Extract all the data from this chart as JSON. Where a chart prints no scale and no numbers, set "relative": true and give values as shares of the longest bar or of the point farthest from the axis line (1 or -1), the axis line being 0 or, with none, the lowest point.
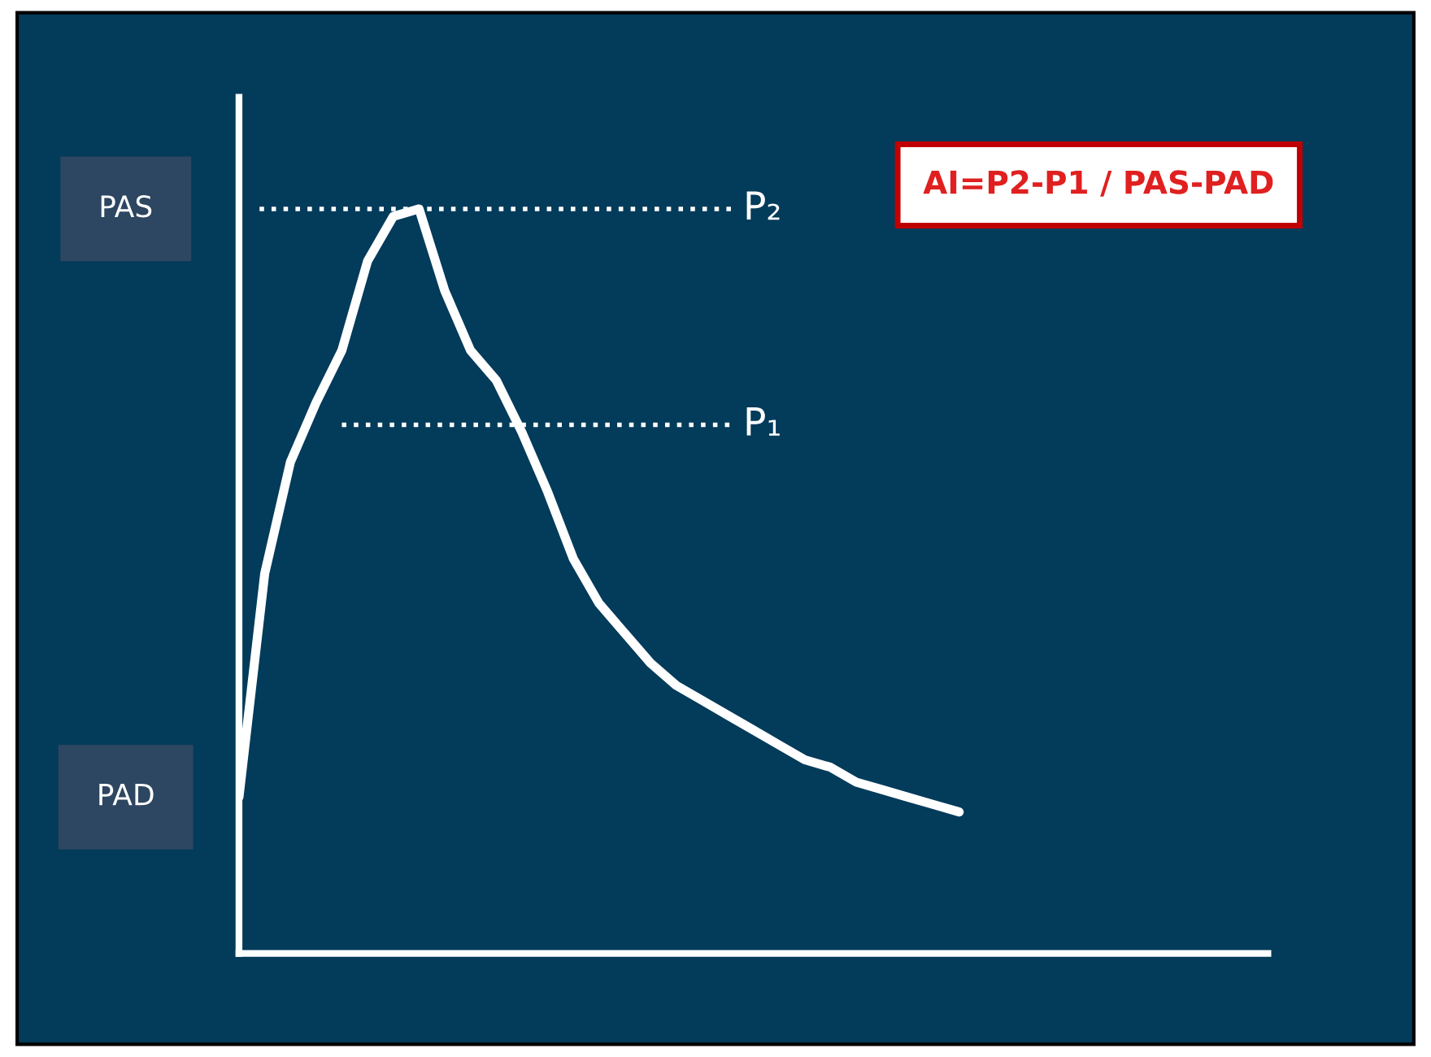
{
  "chart_data": {
    "type": "line",
    "relative": true,
    "categories": [
      null,
      null,
      null,
      null,
      null,
      null,
      null,
      null,
      null,
      null,
      null,
      null,
      null,
      null,
      null,
      null,
      null,
      null,
      null,
      null,
      null,
      null,
      null,
      null,
      null,
      null,
      null,
      null,
      null,
      null,
      null,
      null,
      null,
      null,
      null,
      null,
      null,
      null,
      null,
      null,
      null
    ],
    "series": [
      {
        "color": "#ffffff",
        "values": [
          0.21,
          0.51,
          0.66,
          0.74,
          0.81,
          0.93,
          0.99,
          1.0,
          0.89,
          0.81,
          0.77,
          0.7,
          0.62,
          0.53,
          0.47,
          0.43,
          0.39,
          0.36,
          0.34,
          0.32,
          0.3,
          0.28,
          0.26,
          0.25,
          0.23,
          0.22,
          0.21,
          0.2,
          0.19,
          null,
          null,
          null,
          null,
          null,
          null,
          null,
          null,
          null,
          null,
          null,
          null
        ]
      }
    ],
    "ref_lines": [
      {
        "axis": "y",
        "value": 1.0,
        "label": "P₂",
        "color": "#ffffff",
        "line_style": "dotted"
      },
      {
        "axis": "y",
        "value": 0.71,
        "label": "P₁",
        "color": "#ffffff",
        "line_style": "dotted"
      }
    ],
    "annotations": [
      "AI=P2-P1 / PAS-PAD",
      "PAS",
      "PAD"
    ],
    "marker": "none",
    "line_style": "solid",
    "grid": false,
    "legend": false
  }
}
